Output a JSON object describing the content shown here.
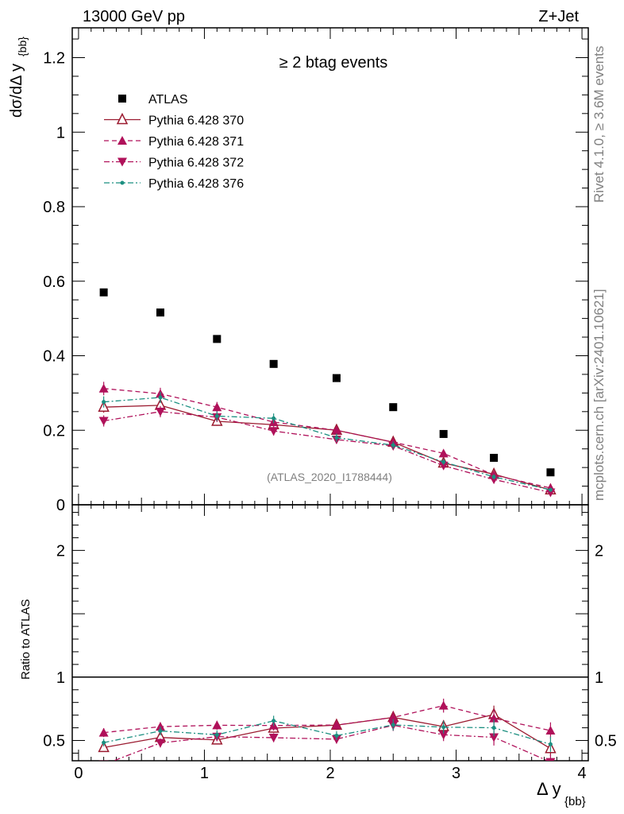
{
  "header": {
    "energy": "13000 GeV pp",
    "process": "Z+Jet"
  },
  "side": {
    "rivet": "Rivet 4.1.0, ≥ 3.6M events",
    "mcplots": "mcplots.cern.ch [arXiv:2401.10621]"
  },
  "chart_data": [
    {
      "type": "scatter",
      "title": "≥ 2 btag events",
      "analysis": "(ATLAS_2020_I1788444)",
      "xlabel_main": "Δ y",
      "xlabel_sub": "{bb}",
      "ylabel_main": "dσ/dΔ y",
      "ylabel_sub": "{bb}",
      "xlim": [
        -0.05,
        4.05
      ],
      "ylim": [
        0,
        1.28
      ],
      "x_ticks": [
        0,
        1,
        2,
        3,
        4
      ],
      "y_ticks": [
        0,
        0.2,
        0.4,
        0.6,
        0.8,
        1,
        1.2
      ],
      "y_tick_labels": [
        "0",
        "0.2",
        "0.4",
        "0.6",
        "0.8",
        "1",
        "1.2"
      ],
      "x": [
        0.2,
        0.65,
        1.1,
        1.55,
        2.05,
        2.5,
        2.9,
        3.3,
        3.75
      ],
      "series": [
        {
          "name": "ATLAS",
          "color": "#000000",
          "marker": "square",
          "values": [
            0.57,
            0.516,
            0.445,
            0.378,
            0.34,
            0.262,
            0.19,
            0.126,
            0.087
          ]
        },
        {
          "name": "Pythia 6.428 370",
          "color": "#9b1b30",
          "marker": "triangle-open",
          "line": "solid",
          "values": [
            0.262,
            0.267,
            0.224,
            0.215,
            0.2,
            0.168,
            0.112,
            0.082,
            0.04
          ],
          "errors": [
            0.015,
            0.015,
            0.012,
            0.012,
            0.01,
            0.01,
            0.008,
            0.007,
            0.005
          ]
        },
        {
          "name": "Pythia 6.428 371",
          "color": "#b0115a",
          "marker": "triangle-up",
          "line": "dashed",
          "values": [
            0.312,
            0.298,
            0.262,
            0.222,
            0.2,
            0.168,
            0.138,
            0.08,
            0.045
          ],
          "errors": [
            0.018,
            0.016,
            0.014,
            0.013,
            0.011,
            0.01,
            0.009,
            0.007,
            0.005
          ]
        },
        {
          "name": "Pythia 6.428 372",
          "color": "#b0115a",
          "marker": "triangle-down",
          "line": "dashdot",
          "values": [
            0.225,
            0.25,
            0.235,
            0.198,
            0.175,
            0.158,
            0.105,
            0.068,
            0.033
          ],
          "errors": [
            0.015,
            0.015,
            0.013,
            0.012,
            0.011,
            0.01,
            0.008,
            0.006,
            0.005
          ]
        },
        {
          "name": "Pythia 6.428 376",
          "color": "#1b8f80",
          "marker": "dot",
          "line": "dashdot",
          "values": [
            0.276,
            0.288,
            0.238,
            0.232,
            0.18,
            0.16,
            0.115,
            0.075,
            0.04
          ],
          "errors": [
            0.015,
            0.015,
            0.013,
            0.013,
            0.011,
            0.01,
            0.008,
            0.007,
            0.005
          ]
        }
      ]
    },
    {
      "type": "scatter",
      "title": "Ratio to ATLAS",
      "ylabel": "Ratio to ATLAS",
      "xlim": [
        -0.05,
        4.05
      ],
      "ylim": [
        0.34,
        2.36
      ],
      "x_ticks": [
        0,
        1,
        2,
        3,
        4
      ],
      "y_ticks": [
        0.5,
        1,
        2
      ],
      "y_tick_labels": [
        "0.5",
        "1",
        "2"
      ],
      "reference": 1,
      "x": [
        0.2,
        0.65,
        1.1,
        1.55,
        2.05,
        2.5,
        2.9,
        3.3,
        3.75
      ],
      "series": [
        {
          "name": "Pythia 6.428 370",
          "values": [
            0.444,
            0.524,
            0.504,
            0.597,
            0.621,
            0.682,
            0.61,
            0.705,
            0.436
          ],
          "errors": [
            0.03,
            0.03,
            0.03,
            0.035,
            0.035,
            0.045,
            0.05,
            0.07,
            0.06
          ]
        },
        {
          "name": "Pythia 6.428 371",
          "values": [
            0.562,
            0.609,
            0.62,
            0.618,
            0.622,
            0.682,
            0.775,
            0.675,
            0.578
          ],
          "errors": [
            0.035,
            0.035,
            0.035,
            0.04,
            0.04,
            0.045,
            0.055,
            0.07,
            0.065
          ]
        },
        {
          "name": "Pythia 6.428 372",
          "values": [
            0.31,
            0.48,
            0.53,
            0.522,
            0.51,
            0.62,
            0.545,
            0.525,
            0.33
          ],
          "errors": [
            0.03,
            0.035,
            0.035,
            0.035,
            0.035,
            0.045,
            0.05,
            0.065,
            0.06
          ]
        },
        {
          "name": "Pythia 6.428 376",
          "values": [
            0.483,
            0.575,
            0.545,
            0.655,
            0.538,
            0.623,
            0.605,
            0.6,
            0.47
          ],
          "errors": [
            0.03,
            0.035,
            0.035,
            0.04,
            0.035,
            0.045,
            0.05,
            0.065,
            0.06
          ]
        }
      ]
    }
  ]
}
